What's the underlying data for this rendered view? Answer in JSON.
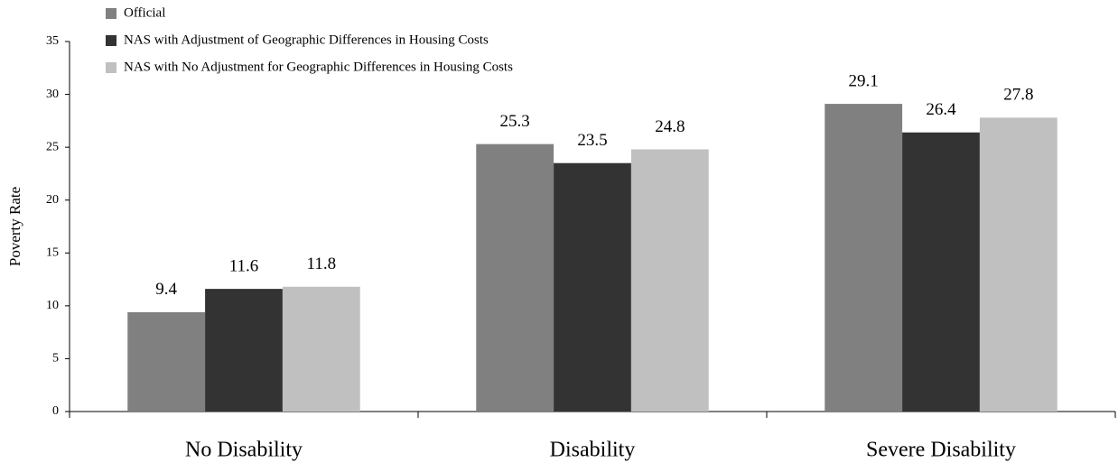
{
  "chart_data": {
    "type": "bar",
    "y_label": "Poverty Rate",
    "categories": [
      "No Disability",
      "Disability",
      "Severe Disability"
    ],
    "series": [
      {
        "name": "Official",
        "color": "#808080",
        "values": [
          9.4,
          25.3,
          29.1
        ]
      },
      {
        "name": "NAS with Adjustment of Geographic Differences in Housing Costs",
        "color": "#333333",
        "values": [
          11.6,
          23.5,
          26.4
        ]
      },
      {
        "name": "NAS with No Adjustment for Geographic Differences in Housing Costs",
        "color": "#c0c0c0",
        "values": [
          11.8,
          24.8,
          27.8
        ]
      }
    ],
    "ylim": [
      0,
      35
    ],
    "yticks": [
      0,
      5,
      10,
      15,
      20,
      25,
      30,
      35
    ],
    "grid": false,
    "legend": "top-left"
  }
}
